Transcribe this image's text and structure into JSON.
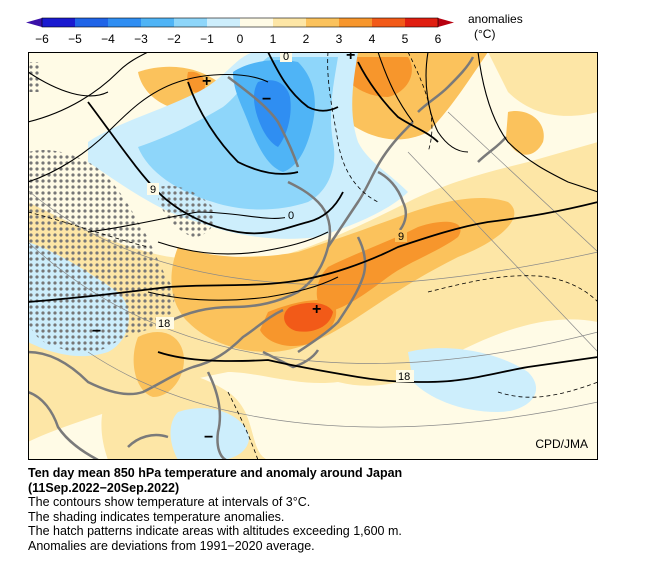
{
  "colorbar": {
    "ticks": [
      "−6",
      "−5",
      "−4",
      "−3",
      "−2",
      "−1",
      "0",
      "1",
      "2",
      "3",
      "4",
      "5",
      "6"
    ],
    "colors": [
      "#1a1ad0",
      "#1f64e8",
      "#2f8ef2",
      "#4fb4f6",
      "#8ed6fa",
      "#cdeefc",
      "#fffbe6",
      "#fde6a6",
      "#fbc25c",
      "#f7962c",
      "#f25a18",
      "#e01e10"
    ],
    "label_line1": "anomalies",
    "label_line2": "(°C)"
  },
  "map": {
    "contour_labels": [
      "0",
      "9",
      "0",
      "9",
      "18",
      "18"
    ],
    "highs": [
      "+",
      "+",
      "+"
    ],
    "lows": [
      "−",
      "−",
      "−"
    ],
    "credit": "CPD/JMA"
  },
  "caption": {
    "title": "Ten day mean 850 hPa temperature and anomaly around Japan",
    "period": "(11Sep.2022−20Sep.2022)",
    "line1": "The contours show temperature at intervals of 3°C.",
    "line2": "The shading indicates temperature anomalies.",
    "line3": "The hatch patterns indicate areas with altitudes exceeding 1,600 m.",
    "line4": "Anomalies are deviations from 1991−2020 average."
  }
}
